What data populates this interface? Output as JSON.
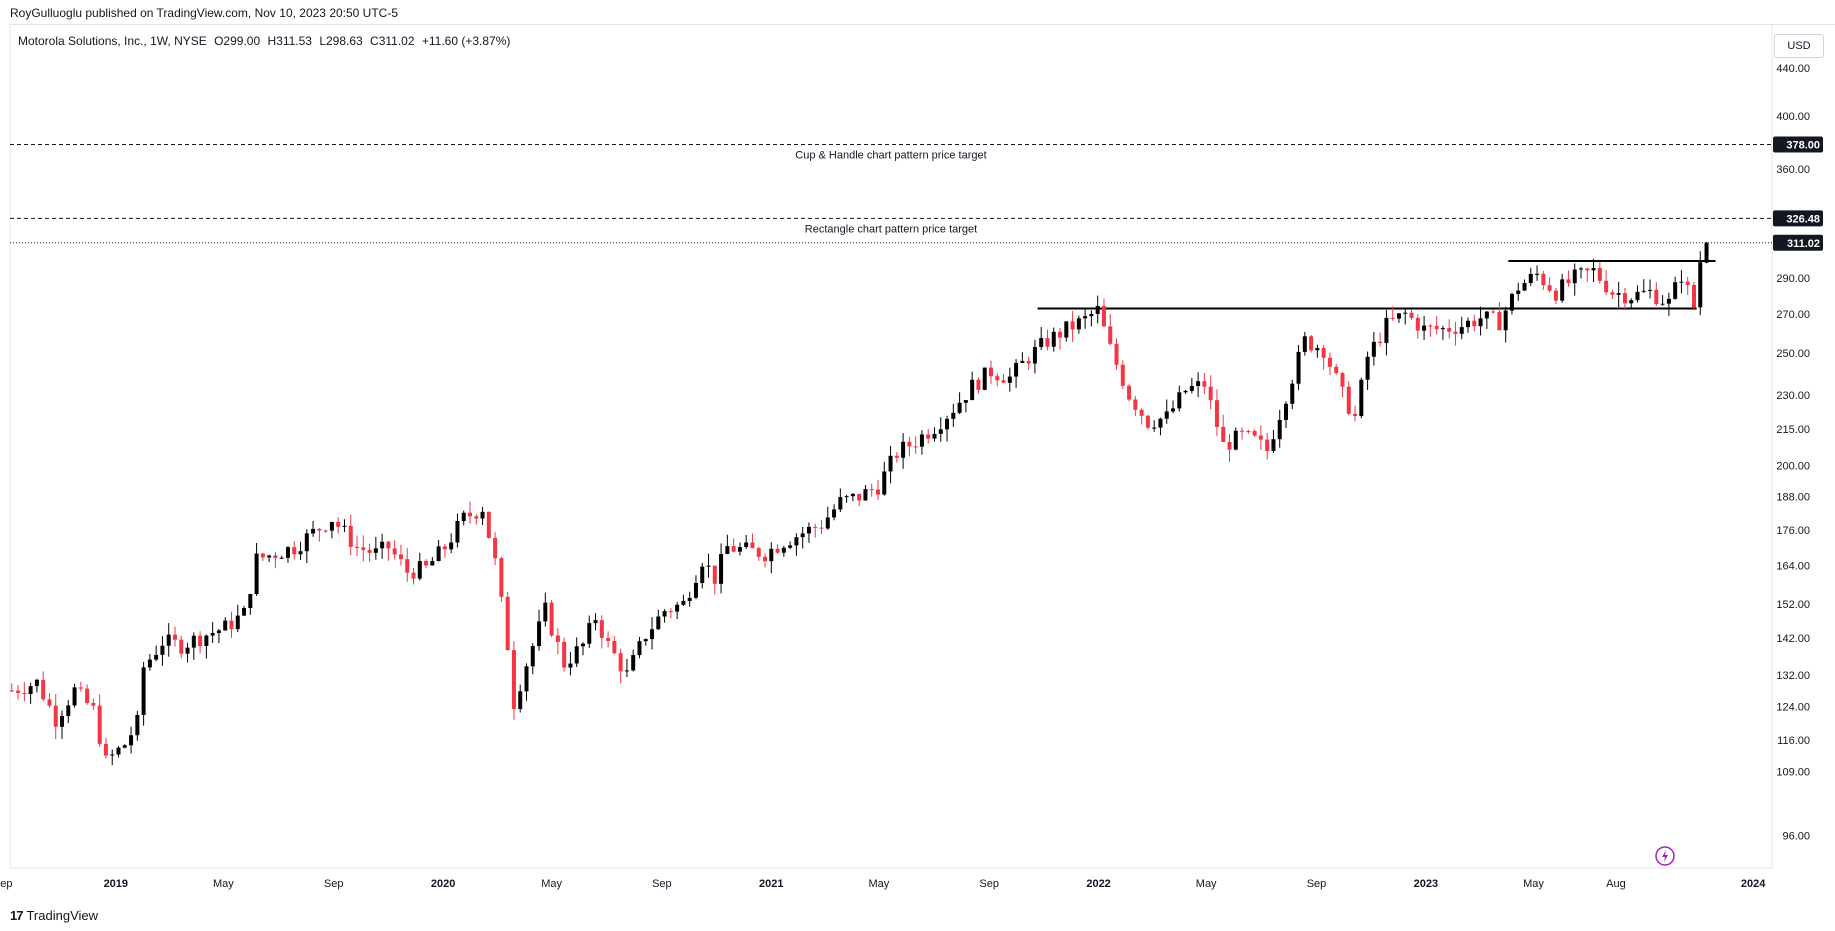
{
  "header": {
    "published": "RoyGulluoglu published on TradingView.com, Nov 10, 2023 20:50 UTC-5"
  },
  "legend": {
    "symbol": "Motorola Solutions, Inc., 1W, NYSE",
    "open": "O299.00",
    "high": "H311.53",
    "low": "L298.63",
    "close": "C311.02",
    "change": "+11.60 (+3.87%)"
  },
  "currency": "USD",
  "footer": {
    "brand": "TradingView"
  },
  "colors": {
    "up": "#000000",
    "down": "#f23645",
    "price_label_bg": "#131722",
    "grid": "#f0f3fa"
  },
  "chart_data": {
    "type": "candlestick",
    "scale": "log",
    "ylim": [
      90,
      480
    ],
    "y_ticks": [
      96,
      109,
      116,
      124,
      132,
      142,
      152,
      164,
      176,
      188,
      200,
      215,
      230,
      250,
      270,
      290,
      360,
      400,
      440
    ],
    "y_tick_labels": [
      "96.00",
      "109.00",
      "116.00",
      "124.00",
      "132.00",
      "142.00",
      "152.00",
      "164.00",
      "176.00",
      "188.00",
      "200.00",
      "215.00",
      "230.00",
      "250.00",
      "270.00",
      "290.00",
      "360.00",
      "400.00",
      "440.00"
    ],
    "x_ticks": [
      {
        "label": "ep",
        "date": "2018-09-01"
      },
      {
        "label": "2019",
        "date": "2019-01-01"
      },
      {
        "label": "May",
        "date": "2019-05-01"
      },
      {
        "label": "Sep",
        "date": "2019-09-01"
      },
      {
        "label": "2020",
        "date": "2020-01-01"
      },
      {
        "label": "May",
        "date": "2020-05-01"
      },
      {
        "label": "Sep",
        "date": "2020-09-01"
      },
      {
        "label": "2021",
        "date": "2021-01-01"
      },
      {
        "label": "May",
        "date": "2021-05-01"
      },
      {
        "label": "Sep",
        "date": "2021-09-01"
      },
      {
        "label": "2022",
        "date": "2022-01-01"
      },
      {
        "label": "May",
        "date": "2022-05-01"
      },
      {
        "label": "Sep",
        "date": "2022-09-01"
      },
      {
        "label": "2023",
        "date": "2023-01-01"
      },
      {
        "label": "May",
        "date": "2023-05-01"
      },
      {
        "label": "Aug",
        "date": "2023-08-01"
      },
      {
        "label": "2024",
        "date": "2024-01-01"
      }
    ],
    "x_range": [
      "2018-09-05",
      "2024-01-22"
    ],
    "price_levels": [
      {
        "value": 378.0,
        "label": "378.00",
        "style": "dashed",
        "annotation": "Cup & Handle chart pattern price target"
      },
      {
        "value": 326.48,
        "label": "326.48",
        "style": "dashed",
        "annotation": "Rectangle chart pattern price target"
      },
      {
        "value": 311.02,
        "label": "311.02",
        "style": "dotted",
        "annotation": ""
      }
    ],
    "trendlines": [
      {
        "from": "2021-10-25",
        "to": "2023-10-30",
        "value": 273
      },
      {
        "from": "2023-04-03",
        "to": "2023-11-20",
        "value": 300
      }
    ],
    "closes": [
      {
        "date": "2018-09-07",
        "close": 128
      },
      {
        "date": "2018-10-05",
        "close": 130
      },
      {
        "date": "2018-10-26",
        "close": 121
      },
      {
        "date": "2018-11-16",
        "close": 128
      },
      {
        "date": "2018-12-07",
        "close": 123
      },
      {
        "date": "2018-12-21",
        "close": 111
      },
      {
        "date": "2019-01-11",
        "close": 115
      },
      {
        "date": "2019-01-25",
        "close": 120
      },
      {
        "date": "2019-02-01",
        "close": 134
      },
      {
        "date": "2019-02-22",
        "close": 141
      },
      {
        "date": "2019-03-15",
        "close": 140
      },
      {
        "date": "2019-04-12",
        "close": 143
      },
      {
        "date": "2019-05-03",
        "close": 145
      },
      {
        "date": "2019-05-24",
        "close": 149
      },
      {
        "date": "2019-06-07",
        "close": 166
      },
      {
        "date": "2019-06-28",
        "close": 168
      },
      {
        "date": "2019-07-19",
        "close": 170
      },
      {
        "date": "2019-08-09",
        "close": 175
      },
      {
        "date": "2019-08-30",
        "close": 180
      },
      {
        "date": "2019-09-27",
        "close": 170
      },
      {
        "date": "2019-10-18",
        "close": 168
      },
      {
        "date": "2019-11-01",
        "close": 170
      },
      {
        "date": "2019-11-22",
        "close": 162
      },
      {
        "date": "2019-12-13",
        "close": 163
      },
      {
        "date": "2020-01-03",
        "close": 170
      },
      {
        "date": "2020-01-24",
        "close": 180
      },
      {
        "date": "2020-02-14",
        "close": 184
      },
      {
        "date": "2020-02-28",
        "close": 165
      },
      {
        "date": "2020-03-13",
        "close": 140
      },
      {
        "date": "2020-03-20",
        "close": 125
      },
      {
        "date": "2020-04-03",
        "close": 135
      },
      {
        "date": "2020-04-24",
        "close": 150
      },
      {
        "date": "2020-05-15",
        "close": 135
      },
      {
        "date": "2020-06-05",
        "close": 140
      },
      {
        "date": "2020-06-19",
        "close": 148
      },
      {
        "date": "2020-07-03",
        "close": 140
      },
      {
        "date": "2020-07-24",
        "close": 132
      },
      {
        "date": "2020-08-14",
        "close": 143
      },
      {
        "date": "2020-09-04",
        "close": 150
      },
      {
        "date": "2020-09-25",
        "close": 152
      },
      {
        "date": "2020-10-16",
        "close": 166
      },
      {
        "date": "2020-10-30",
        "close": 160
      },
      {
        "date": "2020-11-13",
        "close": 170
      },
      {
        "date": "2020-12-04",
        "close": 169
      },
      {
        "date": "2020-12-25",
        "close": 168
      },
      {
        "date": "2021-01-15",
        "close": 172
      },
      {
        "date": "2021-02-05",
        "close": 175
      },
      {
        "date": "2021-02-26",
        "close": 178
      },
      {
        "date": "2021-03-19",
        "close": 186
      },
      {
        "date": "2021-04-09",
        "close": 188
      },
      {
        "date": "2021-04-30",
        "close": 192
      },
      {
        "date": "2021-05-21",
        "close": 205
      },
      {
        "date": "2021-06-11",
        "close": 210
      },
      {
        "date": "2021-07-02",
        "close": 216
      },
      {
        "date": "2021-07-23",
        "close": 224
      },
      {
        "date": "2021-08-13",
        "close": 234
      },
      {
        "date": "2021-09-03",
        "close": 241
      },
      {
        "date": "2021-09-24",
        "close": 238
      },
      {
        "date": "2021-10-15",
        "close": 248
      },
      {
        "date": "2021-11-05",
        "close": 256
      },
      {
        "date": "2021-11-26",
        "close": 262
      },
      {
        "date": "2021-12-17",
        "close": 267
      },
      {
        "date": "2021-12-31",
        "close": 272
      },
      {
        "date": "2022-01-14",
        "close": 252
      },
      {
        "date": "2022-02-04",
        "close": 230
      },
      {
        "date": "2022-02-25",
        "close": 218
      },
      {
        "date": "2022-03-18",
        "close": 220
      },
      {
        "date": "2022-04-08",
        "close": 232
      },
      {
        "date": "2022-04-29",
        "close": 235
      },
      {
        "date": "2022-05-20",
        "close": 208
      },
      {
        "date": "2022-06-10",
        "close": 212
      },
      {
        "date": "2022-06-24",
        "close": 210
      },
      {
        "date": "2022-07-08",
        "close": 206
      },
      {
        "date": "2022-07-29",
        "close": 230
      },
      {
        "date": "2022-08-19",
        "close": 256
      },
      {
        "date": "2022-09-09",
        "close": 252
      },
      {
        "date": "2022-09-30",
        "close": 230
      },
      {
        "date": "2022-10-14",
        "close": 220
      },
      {
        "date": "2022-10-28",
        "close": 248
      },
      {
        "date": "2022-11-18",
        "close": 264
      },
      {
        "date": "2022-12-09",
        "close": 270
      },
      {
        "date": "2022-12-30",
        "close": 262
      },
      {
        "date": "2023-01-20",
        "close": 262
      },
      {
        "date": "2023-02-10",
        "close": 264
      },
      {
        "date": "2023-03-03",
        "close": 268
      },
      {
        "date": "2023-03-24",
        "close": 266
      },
      {
        "date": "2023-04-14",
        "close": 285
      },
      {
        "date": "2023-05-05",
        "close": 292
      },
      {
        "date": "2023-05-26",
        "close": 282
      },
      {
        "date": "2023-06-16",
        "close": 290
      },
      {
        "date": "2023-07-07",
        "close": 294
      },
      {
        "date": "2023-07-28",
        "close": 282
      },
      {
        "date": "2023-08-18",
        "close": 280
      },
      {
        "date": "2023-09-08",
        "close": 282
      },
      {
        "date": "2023-09-29",
        "close": 276
      },
      {
        "date": "2023-10-13",
        "close": 292
      },
      {
        "date": "2023-10-27",
        "close": 274
      },
      {
        "date": "2023-11-03",
        "close": 300
      },
      {
        "date": "2023-11-10",
        "close": 311.02
      }
    ]
  }
}
